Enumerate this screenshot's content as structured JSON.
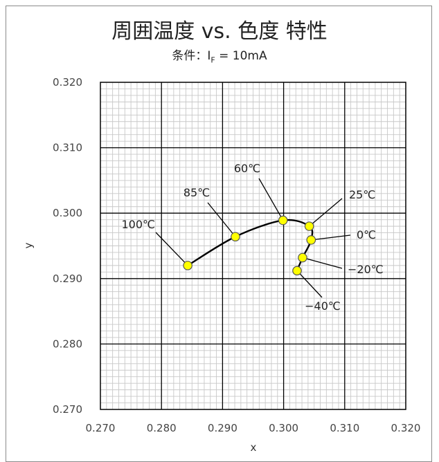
{
  "chart_data": {
    "type": "scatter",
    "title": "周囲温度 vs. 色度  特性",
    "subtitle": {
      "prefix": "条件：I",
      "subscript": "F",
      "suffix": " = 10mA"
    },
    "xlabel": "x",
    "ylabel": "y",
    "xlim": [
      0.27,
      0.32
    ],
    "ylim": [
      0.27,
      0.32
    ],
    "x_ticks": [
      "0.270",
      "0.280",
      "0.290",
      "0.300",
      "0.310",
      "0.320"
    ],
    "y_ticks": [
      "0.270",
      "0.280",
      "0.290",
      "0.300",
      "0.310",
      "0.320"
    ],
    "grid": true,
    "series": [
      {
        "points": [
          {
            "label": "100℃",
            "x": 0.2843,
            "y": 0.292
          },
          {
            "label": "85℃",
            "x": 0.2921,
            "y": 0.2964
          },
          {
            "label": "60℃",
            "x": 0.2999,
            "y": 0.2989
          },
          {
            "label": "25℃",
            "x": 0.3042,
            "y": 0.298
          },
          {
            "label": "0℃",
            "x": 0.3045,
            "y": 0.2959
          },
          {
            "label": "−20℃",
            "x": 0.3031,
            "y": 0.2932
          },
          {
            "label": "−40℃",
            "x": 0.3022,
            "y": 0.2912
          }
        ]
      }
    ],
    "marker_color": "#ffff00",
    "line_color": "#000000"
  }
}
